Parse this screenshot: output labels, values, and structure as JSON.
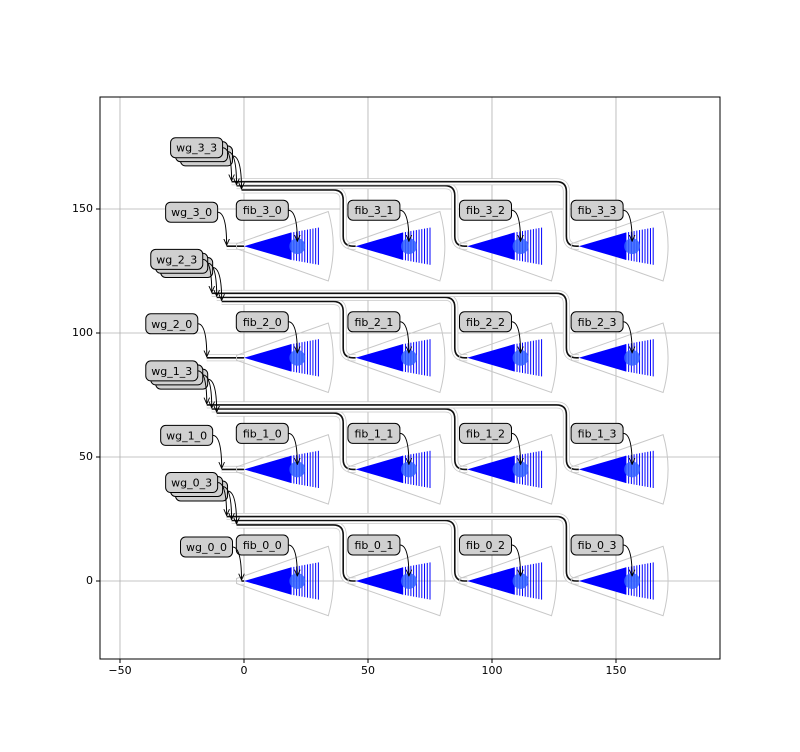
{
  "chart_data": {
    "type": "layout",
    "xlim": [
      -58.06,
      191.94
    ],
    "ylim": [
      -31.45,
      195.16
    ],
    "xticks": [
      {
        "value": -50,
        "label": "−50"
      },
      0,
      50,
      100,
      150
    ],
    "yticks": [
      0,
      50,
      100,
      150
    ],
    "grid": true,
    "fiber_ports": [
      {
        "label": "fib_0_0",
        "x": 21.5,
        "y": 0
      },
      {
        "label": "fib_0_1",
        "x": 66.5,
        "y": 0
      },
      {
        "label": "fib_0_2",
        "x": 111.5,
        "y": 0
      },
      {
        "label": "fib_0_3",
        "x": 156.5,
        "y": 0
      },
      {
        "label": "fib_1_0",
        "x": 21.5,
        "y": 45
      },
      {
        "label": "fib_1_1",
        "x": 66.5,
        "y": 45
      },
      {
        "label": "fib_1_2",
        "x": 111.5,
        "y": 45
      },
      {
        "label": "fib_1_3",
        "x": 156.5,
        "y": 45
      },
      {
        "label": "fib_2_0",
        "x": 21.5,
        "y": 90
      },
      {
        "label": "fib_2_1",
        "x": 66.5,
        "y": 90
      },
      {
        "label": "fib_2_2",
        "x": 111.5,
        "y": 90
      },
      {
        "label": "fib_2_3",
        "x": 156.5,
        "y": 90
      },
      {
        "label": "fib_3_0",
        "x": 21.5,
        "y": 135
      },
      {
        "label": "fib_3_1",
        "x": 66.5,
        "y": 135
      },
      {
        "label": "fib_3_2",
        "x": 111.5,
        "y": 135
      },
      {
        "label": "fib_3_3",
        "x": 156.5,
        "y": 135
      }
    ],
    "waveguide_ports": [
      {
        "label": "wg_0_0",
        "points": [
          [
            -1,
            0
          ]
        ]
      },
      {
        "label": "wg_0_3",
        "points": [
          [
            -3,
            22.6
          ],
          [
            -5,
            24.4
          ],
          [
            -7,
            26
          ]
        ]
      },
      {
        "label": "wg_1_0",
        "points": [
          [
            -9,
            45
          ]
        ]
      },
      {
        "label": "wg_1_3",
        "points": [
          [
            -11,
            67.7
          ],
          [
            -13,
            69.4
          ],
          [
            -15,
            71
          ]
        ]
      },
      {
        "label": "wg_2_0",
        "points": [
          [
            -15,
            90
          ]
        ]
      },
      {
        "label": "wg_2_3",
        "points": [
          [
            -9,
            112.7
          ],
          [
            -11,
            114.4
          ],
          [
            -13,
            116
          ]
        ]
      },
      {
        "label": "wg_3_0",
        "points": [
          [
            -7,
            135
          ]
        ]
      },
      {
        "label": "wg_3_3",
        "points": [
          [
            -1,
            157.7
          ],
          [
            -3,
            159.4
          ],
          [
            -5,
            161
          ]
        ]
      }
    ]
  }
}
